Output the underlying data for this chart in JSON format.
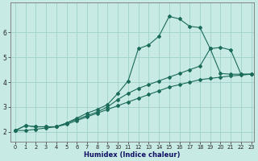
{
  "xlabel": "Humidex (Indice chaleur)",
  "ylabel": "",
  "bg_color": "#c8eae4",
  "grid_color": "#a0d0cc",
  "line_color": "#1a6b5a",
  "xlim": [
    -0.5,
    23.3
  ],
  "ylim": [
    1.6,
    7.2
  ],
  "xticks": [
    0,
    1,
    2,
    3,
    4,
    5,
    6,
    7,
    8,
    9,
    10,
    11,
    12,
    13,
    14,
    15,
    16,
    17,
    18,
    19,
    20,
    21,
    22,
    23
  ],
  "yticks": [
    2,
    3,
    4,
    5,
    6
  ],
  "line1_x": [
    0,
    1,
    2,
    3,
    4,
    5,
    6,
    7,
    8,
    9,
    10,
    11,
    12,
    13,
    14,
    15,
    16,
    17,
    18,
    19,
    20,
    21,
    22,
    23
  ],
  "line1_y": [
    2.05,
    2.05,
    2.1,
    2.15,
    2.2,
    2.3,
    2.45,
    2.6,
    2.75,
    2.9,
    3.05,
    3.2,
    3.35,
    3.5,
    3.65,
    3.8,
    3.9,
    4.0,
    4.1,
    4.15,
    4.2,
    4.25,
    4.28,
    4.32
  ],
  "line2_x": [
    0,
    1,
    2,
    3,
    4,
    5,
    6,
    7,
    8,
    9,
    10,
    11,
    12,
    13,
    14,
    15,
    16,
    17,
    18,
    19,
    20,
    21,
    22,
    23
  ],
  "line2_y": [
    2.05,
    2.25,
    2.2,
    2.2,
    2.2,
    2.35,
    2.5,
    2.65,
    2.8,
    3.0,
    3.3,
    3.55,
    3.75,
    3.9,
    4.05,
    4.2,
    4.35,
    4.5,
    4.65,
    5.35,
    5.4,
    5.3,
    4.32,
    4.32
  ],
  "line3_x": [
    0,
    1,
    2,
    3,
    4,
    5,
    6,
    7,
    8,
    9,
    10,
    11,
    12,
    13,
    14,
    15,
    16,
    17,
    18,
    19,
    20,
    21,
    22,
    23
  ],
  "line3_y": [
    2.05,
    2.25,
    2.2,
    2.2,
    2.2,
    2.35,
    2.55,
    2.75,
    2.9,
    3.1,
    3.55,
    4.05,
    5.35,
    5.5,
    5.85,
    6.65,
    6.55,
    6.25,
    6.2,
    5.35,
    4.35,
    4.32,
    4.32,
    4.32
  ]
}
